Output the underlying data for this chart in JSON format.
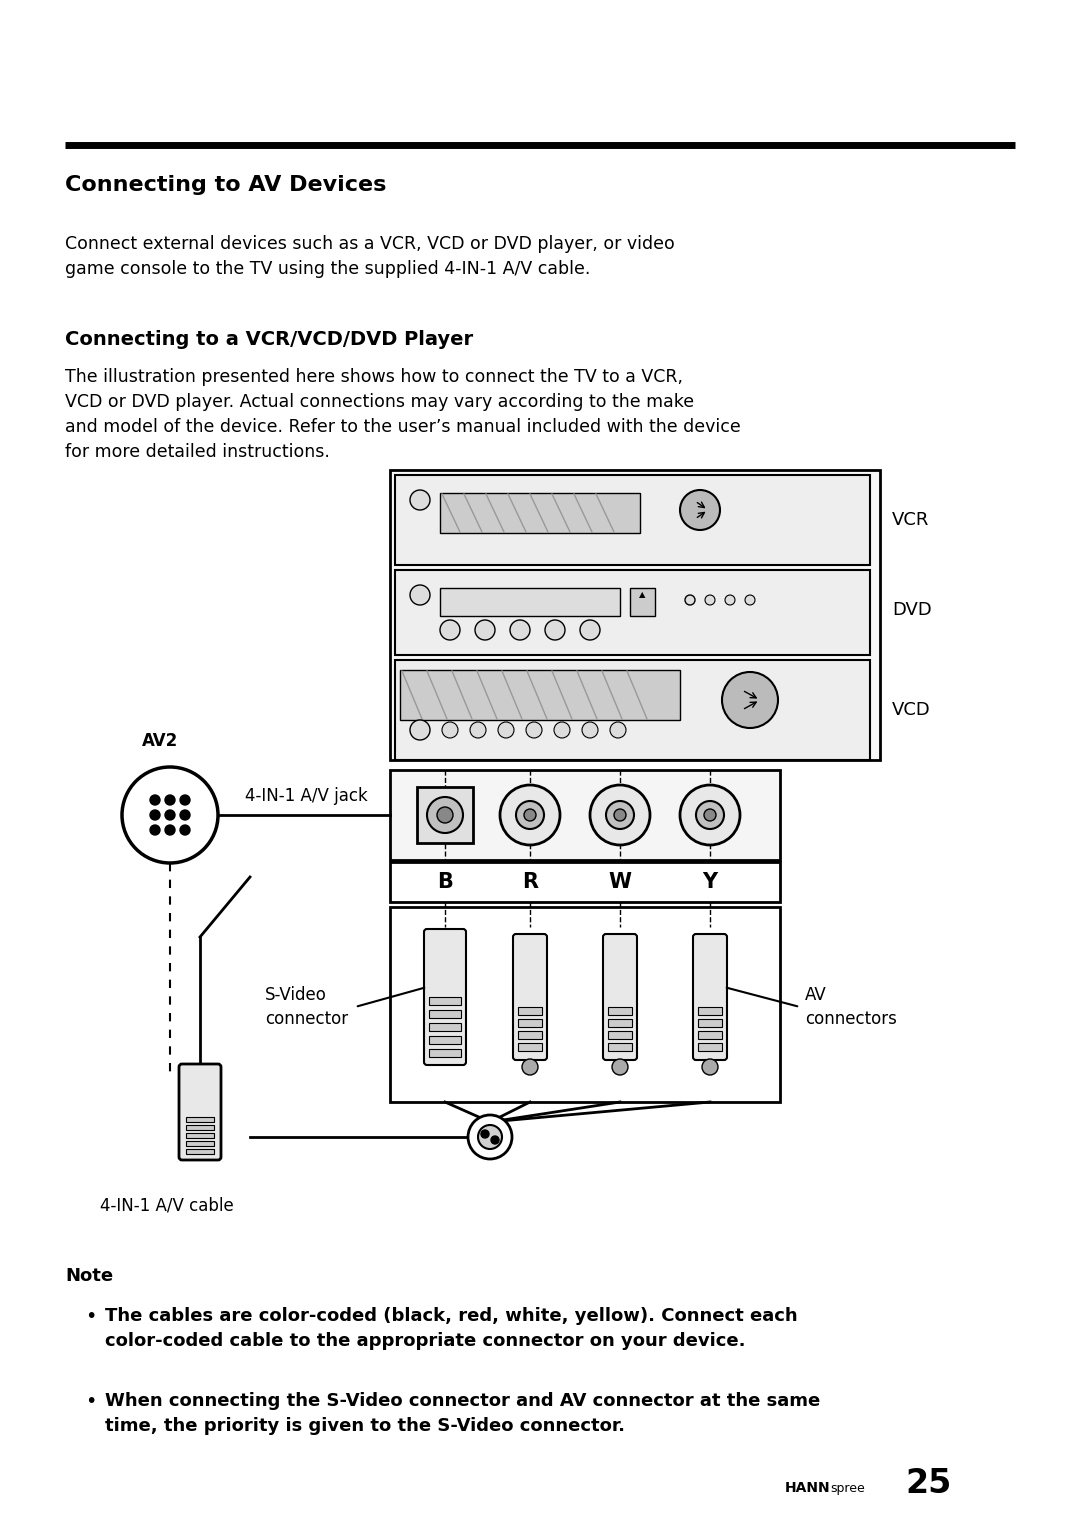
{
  "bg_color": "#ffffff",
  "text_color": "#000000",
  "page_width": 10.8,
  "page_height": 15.29,
  "section_title": "Connecting to AV Devices",
  "section_title_fontsize": 16,
  "body_text1": "Connect external devices such as a VCR, VCD or DVD player, or video\ngame console to the TV using the supplied 4-IN-1 A/V cable.",
  "body_text1_fontsize": 12.5,
  "subsection_title": "Connecting to a VCR/VCD/DVD Player",
  "subsection_title_fontsize": 14,
  "body_text2": "The illustration presented here shows how to connect the TV to a VCR,\nVCD or DVD player. Actual connections may vary according to the make\nand model of the device. Refer to the user’s manual included with the device\nfor more detailed instructions.",
  "body_text2_fontsize": 12.5,
  "note_title": "Note",
  "note_title_fontsize": 13,
  "note_bullet1": "The cables are color-coded (black, red, white, yellow). Connect each\ncolor-coded cable to the appropriate connector on your device.",
  "note_bullet2": "When connecting the S-Video connector and AV connector at the same\ntime, the priority is given to the S-Video connector.",
  "note_fontsize": 13
}
